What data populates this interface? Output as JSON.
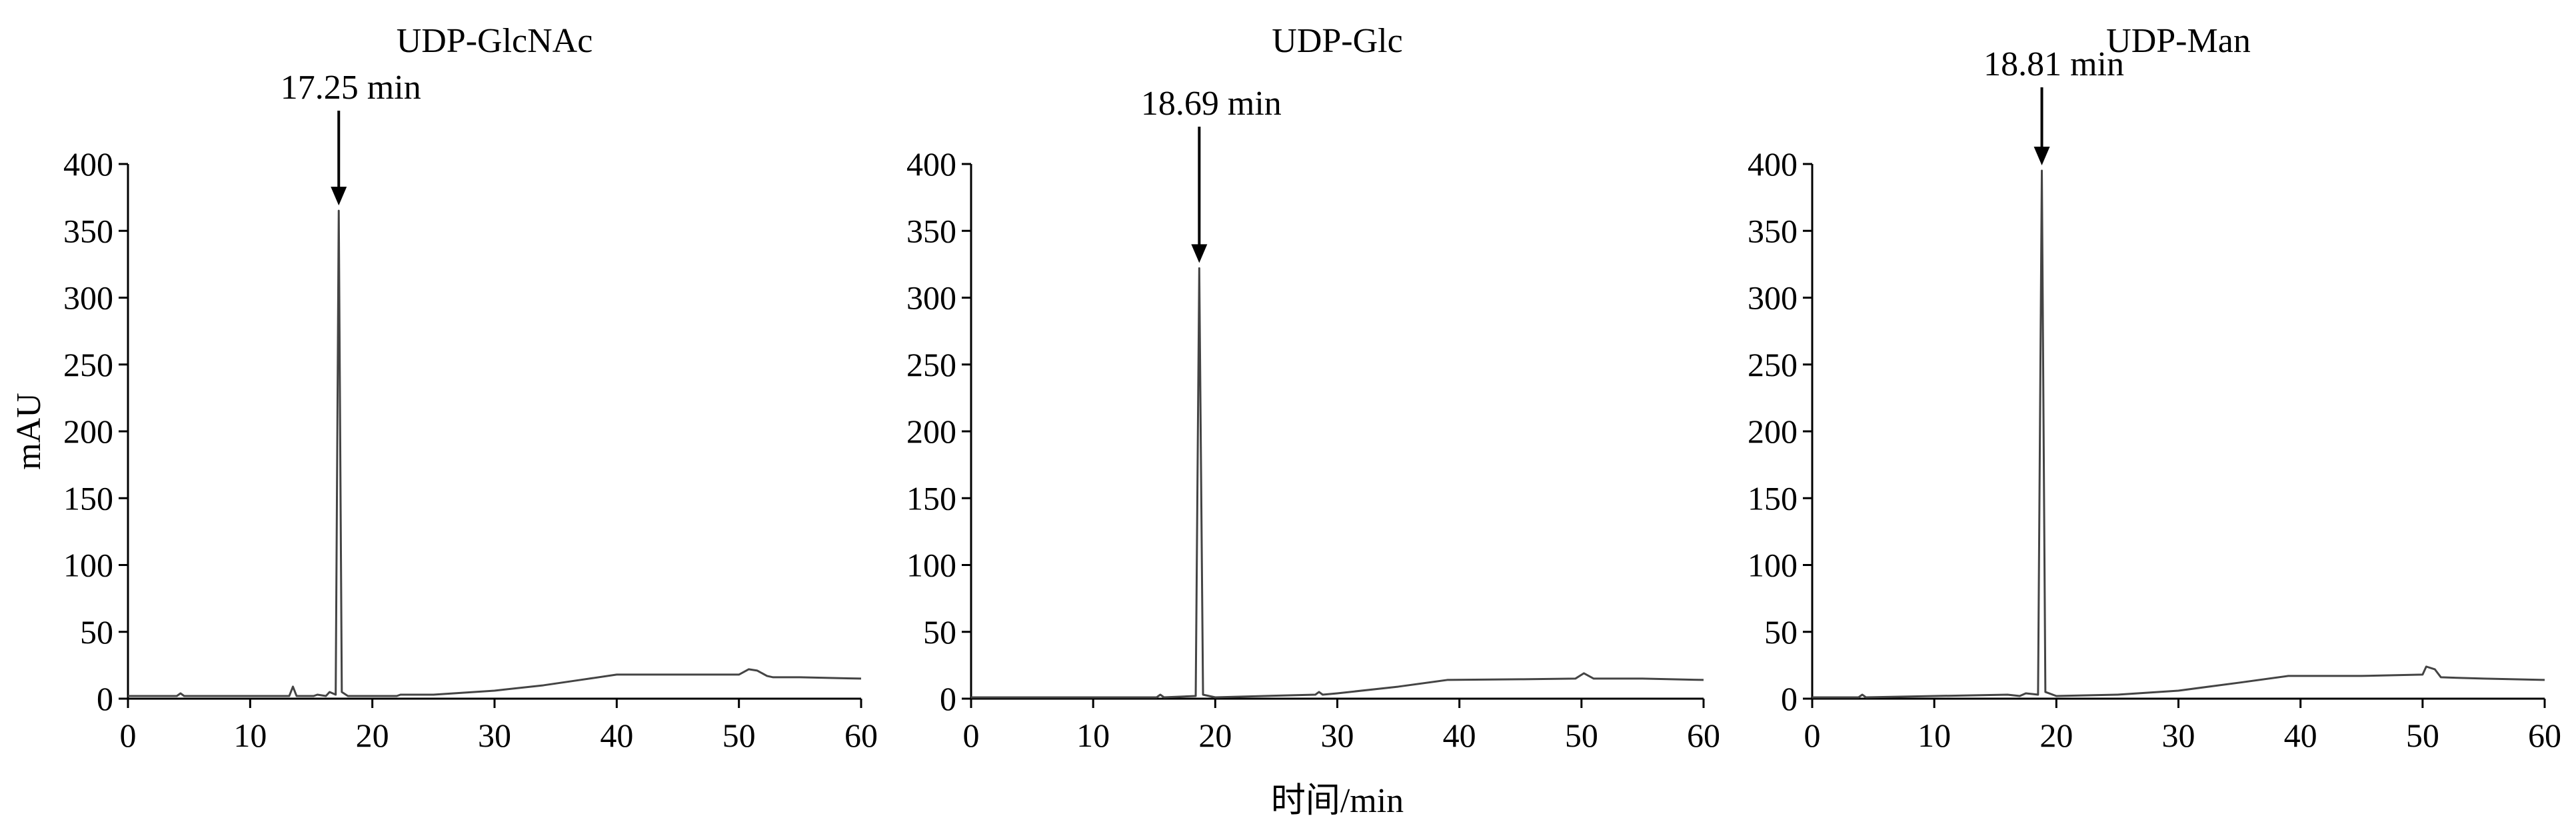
{
  "chart_data": [
    {
      "type": "line",
      "title": "UDP-GlcNAc",
      "annotation": "17.25 min",
      "y_label": "mAU",
      "x": [
        0,
        4,
        4.3,
        4.6,
        10,
        13.2,
        13.5,
        13.8,
        15.2,
        15.5,
        16.2,
        16.5,
        17.0,
        17.25,
        17.5,
        18,
        20,
        22,
        22.3,
        25,
        30,
        34,
        37,
        40,
        45,
        50,
        50.8,
        51.5,
        52.3,
        52.8,
        55,
        60
      ],
      "series": [
        {
          "name": "UDP-GlcNAc",
          "color": "#444444",
          "values": [
            2,
            2,
            4,
            2,
            2,
            2,
            9,
            2,
            2,
            3,
            2,
            5,
            3,
            365,
            5,
            2,
            2,
            2,
            3,
            3,
            6,
            10,
            14,
            18,
            18,
            18,
            22,
            21,
            17,
            16,
            16,
            15
          ]
        }
      ],
      "xlim": [
        0,
        60
      ],
      "ylim": [
        0,
        400
      ],
      "xticks": [
        0,
        10,
        20,
        30,
        40,
        50,
        60
      ],
      "yticks": [
        0,
        50,
        100,
        150,
        200,
        250,
        300,
        350,
        400
      ]
    },
    {
      "type": "line",
      "title": "UDP-Glc",
      "annotation": "18.69 min",
      "x_label": "时间/min",
      "x": [
        0,
        15.2,
        15.5,
        15.8,
        18.4,
        18.69,
        19.0,
        20,
        28.2,
        28.5,
        28.8,
        30,
        35,
        39,
        45,
        49.5,
        50.2,
        51,
        55,
        60
      ],
      "series": [
        {
          "name": "UDP-Glc",
          "color": "#444444",
          "values": [
            1,
            1,
            3,
            1,
            2,
            322,
            3,
            1,
            3,
            5,
            3,
            4,
            9,
            14,
            14.5,
            15,
            19,
            15,
            15,
            14
          ]
        }
      ],
      "xlim": [
        0,
        60
      ],
      "ylim": [
        0,
        400
      ],
      "xticks": [
        0,
        10,
        20,
        30,
        40,
        50,
        60
      ],
      "yticks": [
        0,
        50,
        100,
        150,
        200,
        250,
        300,
        350,
        400
      ]
    },
    {
      "type": "line",
      "title": "UDP-Man",
      "annotation": "18.81 min",
      "x": [
        0,
        3.8,
        4.1,
        4.4,
        16,
        17,
        17.5,
        18.5,
        18.81,
        19.1,
        20,
        25,
        30,
        35,
        39,
        45,
        50,
        50.3,
        51,
        51.5,
        55,
        60
      ],
      "series": [
        {
          "name": "UDP-Man",
          "color": "#444444",
          "values": [
            1,
            1,
            3,
            1,
            3,
            2,
            4,
            3,
            395,
            5,
            2,
            3,
            6,
            12,
            17,
            17,
            18,
            24,
            22,
            16,
            15,
            14
          ]
        }
      ],
      "xlim": [
        0,
        60
      ],
      "ylim": [
        0,
        400
      ],
      "xticks": [
        0,
        10,
        20,
        30,
        40,
        50,
        60
      ],
      "yticks": [
        0,
        50,
        100,
        150,
        200,
        250,
        300,
        350,
        400
      ]
    }
  ]
}
